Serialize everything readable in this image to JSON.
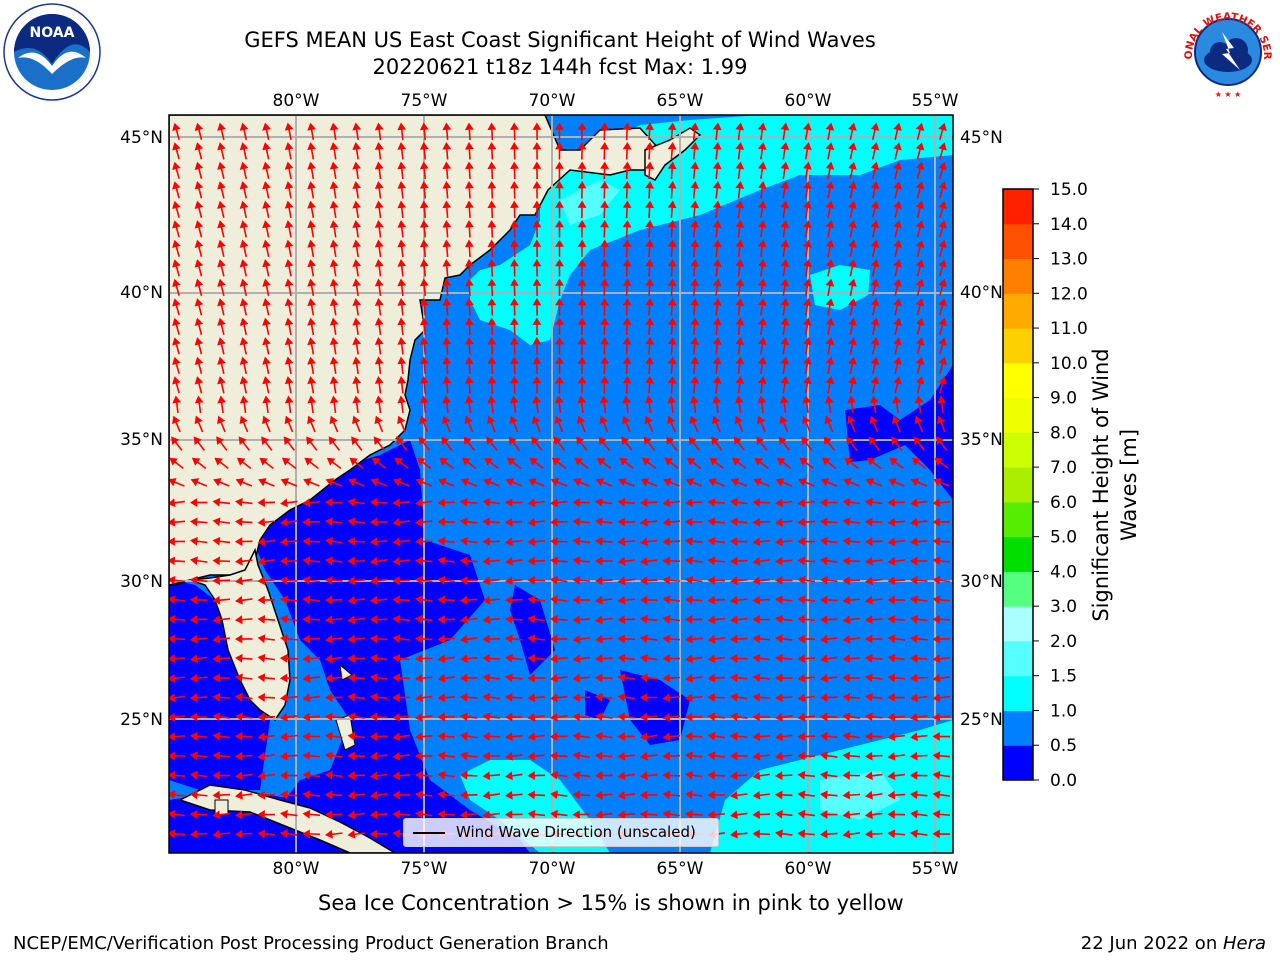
{
  "title": {
    "line1": "GEFS MEAN US East Coast Significant Height of Wind Waves",
    "line2": "20220621 t18z 144h fcst   Max: 1.99"
  },
  "logos": {
    "left": {
      "icon": "noaa-logo",
      "text": "NOAA"
    },
    "right": {
      "icon": "nws-logo",
      "text": "NATIONAL WEATHER SERVICE"
    }
  },
  "map": {
    "lon_labels": [
      "80°W",
      "75°W",
      "70°W",
      "65°W",
      "60°W",
      "55°W"
    ],
    "lat_labels": [
      "45°N",
      "40°N",
      "35°N",
      "30°N",
      "25°N"
    ],
    "colors": {
      "land": "#efeedb",
      "band_0_0_5": "#0000ff",
      "band_0_5_1_0": "#0080ff",
      "band_1_0_1_5": "#00ffff",
      "band_1_5_2_0": "#55ffff",
      "arrow": "#ff0000",
      "grid": "#b0b0b0"
    },
    "legend": {
      "label": "Wind Wave Direction (unscaled)"
    }
  },
  "colorbar": {
    "title_line1": "Significant Height of Wind",
    "title_line2": "Waves [m]",
    "ticks": [
      "0.0",
      "0.5",
      "1.0",
      "1.5",
      "2.0",
      "3.0",
      "4.0",
      "5.0",
      "6.0",
      "7.0",
      "8.0",
      "9.0",
      "10.0",
      "11.0",
      "12.0",
      "13.0",
      "14.0",
      "15.0"
    ],
    "colors": [
      "#0000ff",
      "#0080ff",
      "#00ffff",
      "#55ffff",
      "#aaffff",
      "#55ff80",
      "#00e000",
      "#55ee00",
      "#aaee00",
      "#ccff00",
      "#eeff00",
      "#ffff00",
      "#ffd000",
      "#ffaa00",
      "#ff8000",
      "#ff5000",
      "#ff2000"
    ]
  },
  "note": "Sea Ice Concentration > 15% is shown in pink to yellow",
  "footer": {
    "left": "NCEP/EMC/Verification Post Processing Product Generation Branch",
    "right_date": "22 Jun 2022 on ",
    "right_machine": "Hera"
  }
}
